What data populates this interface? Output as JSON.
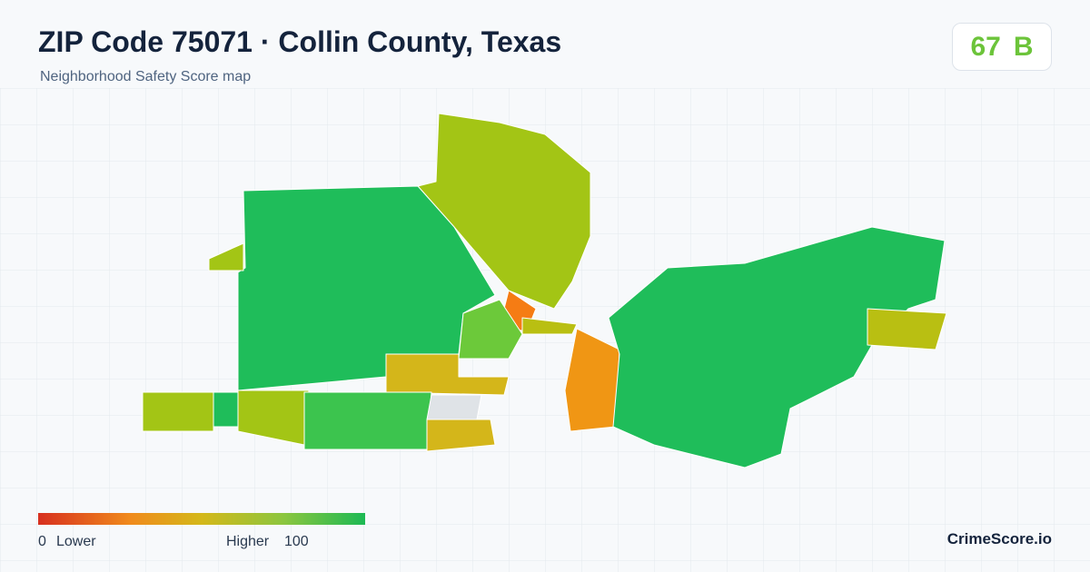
{
  "header": {
    "title": "ZIP Code 75071 · Collin County, Texas",
    "subtitle": "Neighborhood Safety Score map"
  },
  "score": {
    "value": 67,
    "grade": "B"
  },
  "legend": {
    "min": 0,
    "min_label": "Lower",
    "max_label": "Higher",
    "max": 100
  },
  "brand": "CrimeScore.io"
}
